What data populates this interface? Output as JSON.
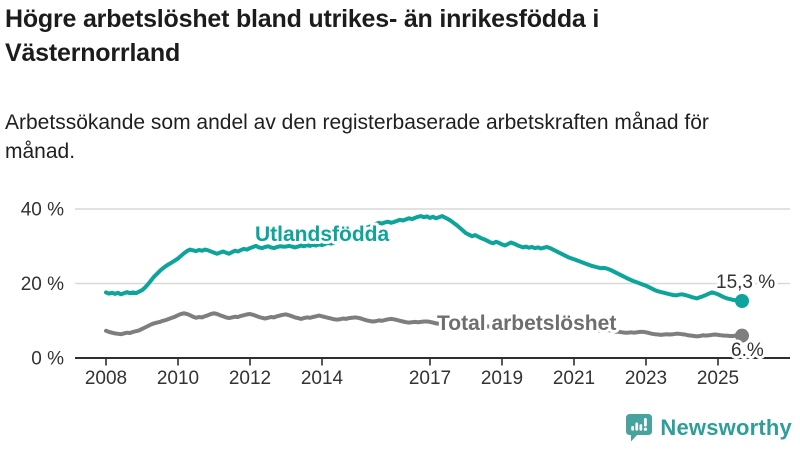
{
  "header": {
    "title": "Högre arbetslöshet bland utrikes- än inrikesfödda i Västernorrland",
    "subtitle": "Arbetssökande som andel av den registerbaserade arbetskraften månad för månad."
  },
  "chart_data": {
    "type": "line",
    "title": "Högre arbetslöshet bland utrikes- än inrikesfödda i Västernorrland",
    "subtitle": "Arbetssökande som andel av den registerbaserade arbetskraften månad för månad.",
    "x_unit": "month",
    "x_start": "2008-01",
    "x_end": "2025-09",
    "grid": true,
    "legend_position": "inline-labels",
    "y_axis": {
      "range": [
        0,
        42
      ],
      "ticks": [
        {
          "value": 0,
          "label": "0 %"
        },
        {
          "value": 20,
          "label": "20 %"
        },
        {
          "value": 40,
          "label": "40 %"
        }
      ]
    },
    "x_ticks": [
      {
        "year": 2008,
        "label": "2008"
      },
      {
        "year": 2010,
        "label": "2010"
      },
      {
        "year": 2012,
        "label": "2012"
      },
      {
        "year": 2014,
        "label": "2014"
      },
      {
        "year": 2017,
        "label": "2017"
      },
      {
        "year": 2019,
        "label": "2019"
      },
      {
        "year": 2021,
        "label": "2021"
      },
      {
        "year": 2023,
        "label": "2023"
      },
      {
        "year": 2025,
        "label": "2025"
      }
    ],
    "series": [
      {
        "name": "Utlandsfödda",
        "color": "#0DA49B",
        "end_value_label": "15,3 %",
        "end_value": 15.3,
        "values": [
          17.6,
          17.3,
          17.5,
          17.2,
          17.5,
          17.1,
          17.4,
          17.7,
          17.4,
          17.6,
          17.4,
          17.8,
          18.2,
          18.9,
          19.8,
          20.8,
          21.8,
          22.6,
          23.4,
          24.1,
          24.7,
          25.2,
          25.7,
          26.2,
          26.7,
          27.4,
          28.1,
          28.7,
          29.1,
          28.9,
          28.7,
          29.0,
          28.8,
          29.1,
          28.9,
          28.6,
          28.3,
          28.0,
          28.3,
          28.6,
          28.3,
          28.0,
          28.4,
          28.8,
          28.6,
          29.0,
          29.3,
          29.1,
          29.5,
          29.8,
          30.1,
          29.7,
          29.5,
          29.8,
          30.0,
          29.7,
          29.5,
          29.8,
          30.0,
          29.9,
          29.9,
          30.1,
          29.9,
          29.7,
          29.9,
          30.2,
          30.0,
          30.3,
          30.1,
          30.4,
          30.2,
          30.5,
          30.3,
          30.6,
          30.9,
          30.7,
          31.0,
          31.3,
          31.6,
          31.9,
          32.2,
          32.6,
          33.0,
          33.4,
          33.9,
          34.3,
          34.7,
          35.0,
          35.3,
          35.7,
          36.0,
          36.3,
          36.1,
          36.4,
          36.6,
          36.3,
          36.5,
          36.8,
          37.1,
          36.9,
          37.2,
          37.5,
          37.3,
          37.6,
          37.9,
          38.1,
          37.8,
          38.0,
          37.6,
          37.9,
          37.5,
          37.8,
          38.1,
          37.7,
          37.3,
          36.8,
          36.2,
          35.6,
          34.9,
          34.2,
          33.5,
          33.1,
          32.7,
          33.0,
          32.6,
          32.2,
          31.9,
          31.5,
          31.1,
          30.8,
          31.2,
          30.9,
          30.5,
          30.2,
          30.6,
          31.0,
          30.7,
          30.3,
          30.0,
          29.7,
          29.9,
          29.6,
          29.8,
          29.5,
          29.7,
          29.4,
          29.6,
          29.8,
          29.5,
          29.1,
          28.7,
          28.3,
          27.9,
          27.5,
          27.1,
          26.8,
          26.5,
          26.2,
          25.9,
          25.6,
          25.3,
          25.0,
          24.7,
          24.5,
          24.3,
          24.1,
          24.2,
          24.0,
          23.7,
          23.3,
          22.9,
          22.5,
          22.1,
          21.7,
          21.3,
          20.9,
          20.6,
          20.3,
          20.0,
          19.7,
          19.4,
          19.0,
          18.6,
          18.2,
          17.9,
          17.7,
          17.5,
          17.3,
          17.1,
          16.9,
          16.8,
          17.0,
          17.1,
          16.9,
          16.7,
          16.4,
          16.2,
          16.0,
          16.3,
          16.6,
          16.9,
          17.3,
          17.6,
          17.4,
          17.1,
          16.7,
          16.3,
          16.0,
          15.8,
          15.6,
          15.5,
          15.4,
          15.3
        ]
      },
      {
        "name": "Total arbetslöshet",
        "color": "#7E7E7E",
        "end_value_label": "6.%",
        "end_value": 6.0,
        "values": [
          7.3,
          7.0,
          6.8,
          6.6,
          6.5,
          6.4,
          6.6,
          6.8,
          6.7,
          7.0,
          7.2,
          7.4,
          7.8,
          8.2,
          8.6,
          9.0,
          9.3,
          9.5,
          9.7,
          10.0,
          10.2,
          10.5,
          10.8,
          11.1,
          11.5,
          11.8,
          12.0,
          11.8,
          11.5,
          11.1,
          10.8,
          11.0,
          10.9,
          11.2,
          11.5,
          11.8,
          12.0,
          11.8,
          11.5,
          11.2,
          10.9,
          10.7,
          10.9,
          11.1,
          11.0,
          11.3,
          11.5,
          11.7,
          11.8,
          11.6,
          11.3,
          11.0,
          10.8,
          10.6,
          10.8,
          11.0,
          10.9,
          11.2,
          11.4,
          11.6,
          11.7,
          11.5,
          11.2,
          10.9,
          10.7,
          10.5,
          10.7,
          10.9,
          10.8,
          11.0,
          11.2,
          11.4,
          11.2,
          11.0,
          10.8,
          10.6,
          10.4,
          10.3,
          10.4,
          10.6,
          10.5,
          10.7,
          10.8,
          10.9,
          10.8,
          10.6,
          10.3,
          10.1,
          9.9,
          9.8,
          9.9,
          10.1,
          10.0,
          10.2,
          10.4,
          10.5,
          10.4,
          10.2,
          10.0,
          9.8,
          9.6,
          9.5,
          9.6,
          9.7,
          9.6,
          9.7,
          9.8,
          9.8,
          9.7,
          9.5,
          9.3,
          9.2,
          9.1,
          9.0,
          9.0,
          9.1,
          9.0,
          9.1,
          9.1,
          9.2,
          9.0,
          8.9,
          8.7,
          8.6,
          8.5,
          8.4,
          8.4,
          8.5,
          8.4,
          8.5,
          8.6,
          8.6,
          8.5,
          8.3,
          8.1,
          8.0,
          7.9,
          7.8,
          7.9,
          8.0,
          7.9,
          8.0,
          8.1,
          8.2,
          8.3,
          8.4,
          8.6,
          8.9,
          9.0,
          8.9,
          8.8,
          8.7,
          8.5,
          8.4,
          8.3,
          8.2,
          8.1,
          8.0,
          7.8,
          7.7,
          7.5,
          7.4,
          7.4,
          7.5,
          7.4,
          7.4,
          7.5,
          7.5,
          7.4,
          7.3,
          7.1,
          7.0,
          6.9,
          6.8,
          6.8,
          6.9,
          6.8,
          6.9,
          7.0,
          7.0,
          6.9,
          6.7,
          6.5,
          6.4,
          6.3,
          6.2,
          6.3,
          6.4,
          6.3,
          6.4,
          6.5,
          6.5,
          6.4,
          6.3,
          6.1,
          6.0,
          5.9,
          5.8,
          5.9,
          6.1,
          6.0,
          6.1,
          6.2,
          6.3,
          6.2,
          6.1,
          6.0,
          6.0,
          5.9,
          5.9,
          6.0,
          6.0,
          6.0
        ]
      }
    ]
  },
  "colors": {
    "accent_teal": "#0DA49B",
    "series_gray": "#7E7E7E",
    "grid": "#D9D9D9",
    "axis": "#2F2F2F",
    "tick_text": "#333333",
    "logo_teal": "#47A39E"
  },
  "footer": {
    "brand": "Newsworthy"
  }
}
